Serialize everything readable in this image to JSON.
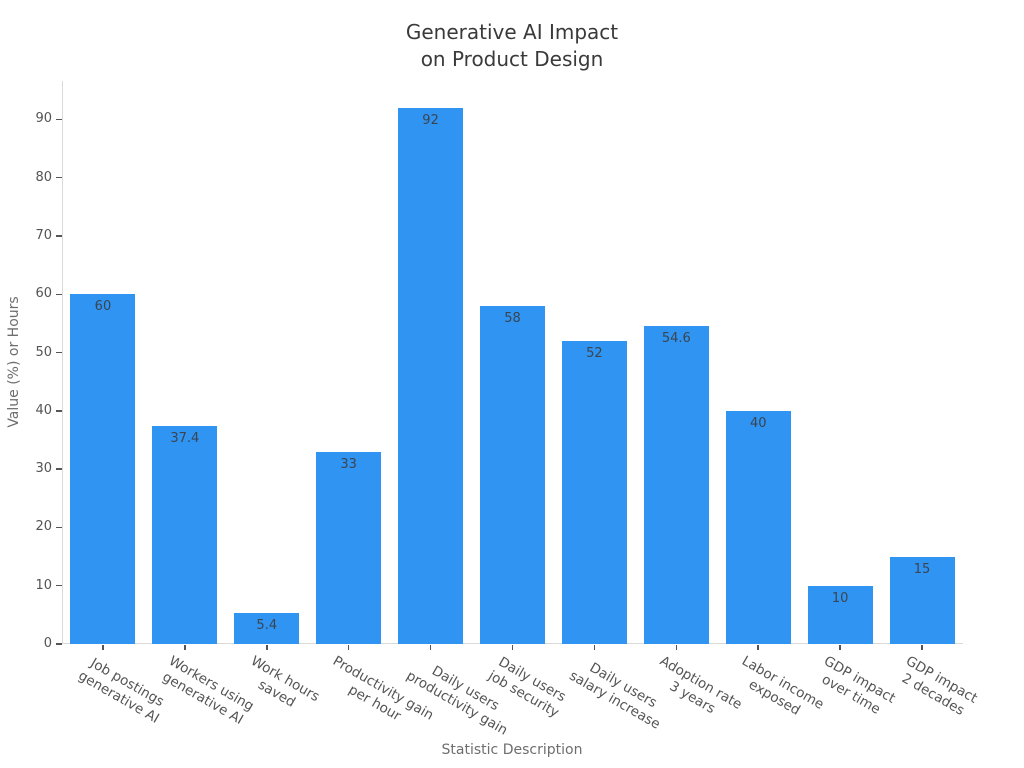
{
  "chart_data": {
    "type": "bar",
    "title": "Generative AI Impact\non Product Design",
    "xlabel": "Statistic Description",
    "ylabel": "Value (%) or Hours",
    "categories": [
      "Job postings\ngenerative AI",
      "Workers using\ngenerative AI",
      "Work hours\nsaved",
      "Productivity gain\nper hour",
      "Daily users\nproductivity gain",
      "Daily users\njob security",
      "Daily users\nsalary increase",
      "Adoption rate\n3 years",
      "Labor income\nexposed",
      "GDP impact\nover time",
      "GDP impact\n2 decades"
    ],
    "values": [
      60,
      37.4,
      5.4,
      33,
      92,
      58,
      52,
      54.6,
      40,
      10,
      15
    ],
    "value_labels": [
      "60",
      "37.4",
      "5.4",
      "33",
      "92",
      "58",
      "52",
      "54.6",
      "40",
      "10",
      "15"
    ],
    "yticks": [
      0,
      10,
      20,
      30,
      40,
      50,
      60,
      70,
      80,
      90
    ],
    "ylim": [
      0,
      96.6
    ],
    "grid": false,
    "legend": "none",
    "x_tick_rotation_deg": 30,
    "bar_color": "#3094f2"
  },
  "colors": {
    "bar": "#3094f2",
    "spine": "#d9d9d9",
    "tick_mark": "#555555",
    "tick_label": "#545454",
    "axis_title": "#6e6e6e",
    "title": "#3a3a3a",
    "value_label": "#3a4551",
    "background": "#ffffff"
  }
}
